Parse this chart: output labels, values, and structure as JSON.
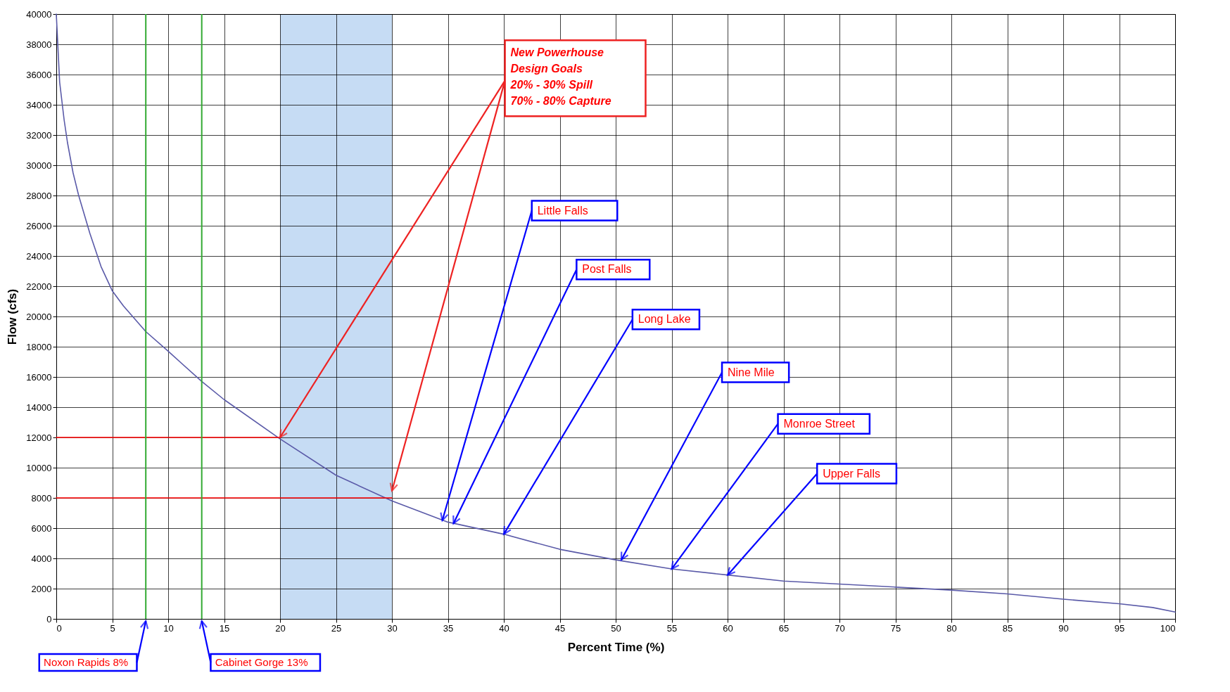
{
  "chart_data": {
    "type": "line",
    "xlabel": "Percent Time (%)",
    "ylabel": "Flow (cfs)",
    "x": [
      0,
      0.3,
      0.7,
      1,
      1.5,
      2,
      3,
      4,
      5,
      6,
      8,
      10,
      13,
      15,
      20,
      25,
      30,
      35,
      40,
      45,
      50,
      55,
      60,
      65,
      70,
      75,
      80,
      85,
      90,
      95,
      98,
      100
    ],
    "series": [
      {
        "color": "#5a5aa8",
        "values": [
          40000,
          35500,
          33000,
          31500,
          29500,
          28000,
          25500,
          23300,
          21700,
          20700,
          19000,
          17700,
          15700,
          14500,
          11900,
          9500,
          7800,
          6400,
          5600,
          4600,
          3900,
          3300,
          2900,
          2500,
          2300,
          2100,
          1900,
          1650,
          1300,
          1000,
          750,
          450
        ]
      },
      {
        "type": "line",
        "color": "#ff0000",
        "x": [
          0,
          20
        ],
        "values": [
          12000,
          12000
        ]
      },
      {
        "type": "line",
        "color": "#ff0000",
        "x": [
          0,
          30
        ],
        "values": [
          8000,
          8000
        ]
      }
    ],
    "xlim": [
      0,
      100
    ],
    "xticks": [
      0,
      5,
      10,
      15,
      20,
      25,
      30,
      35,
      40,
      45,
      50,
      55,
      60,
      65,
      70,
      75,
      80,
      85,
      90,
      95,
      100
    ],
    "ylim": [
      0,
      40000
    ],
    "yticks": [
      0,
      2000,
      4000,
      6000,
      8000,
      10000,
      12000,
      14000,
      16000,
      18000,
      20000,
      22000,
      24000,
      26000,
      28000,
      30000,
      32000,
      34000,
      36000,
      38000,
      40000
    ],
    "grid": true,
    "marker": "none",
    "line_style": "solid",
    "bands": [
      {
        "axis": "x",
        "from": 20,
        "to": 30,
        "color": "#c6dcf4"
      }
    ],
    "ref_lines": [
      {
        "axis": "x",
        "value": 8,
        "label": "Noxon Rapids 8%",
        "color": "#33aa33"
      },
      {
        "axis": "x",
        "value": 13,
        "label": "Cabinet Gorge 13%",
        "color": "#33aa33"
      }
    ],
    "annotations": [
      {
        "text": "New Powerhouse\nDesign Goals\n  20% - 30% Spill\n  70% - 80% Capture",
        "x": 20,
        "y": 12000
      },
      {
        "text": "Little Falls",
        "x": 34.5,
        "y": 6500
      },
      {
        "text": "Post Falls",
        "x": 35.5,
        "y": 6300
      },
      {
        "text": "Long Lake",
        "x": 40,
        "y": 5600
      },
      {
        "text": "Nine Mile",
        "x": 50.5,
        "y": 3900
      },
      {
        "text": "Monroe Street",
        "x": 55,
        "y": 3300
      },
      {
        "text": "Upper Falls",
        "x": 60,
        "y": 2900
      }
    ]
  }
}
